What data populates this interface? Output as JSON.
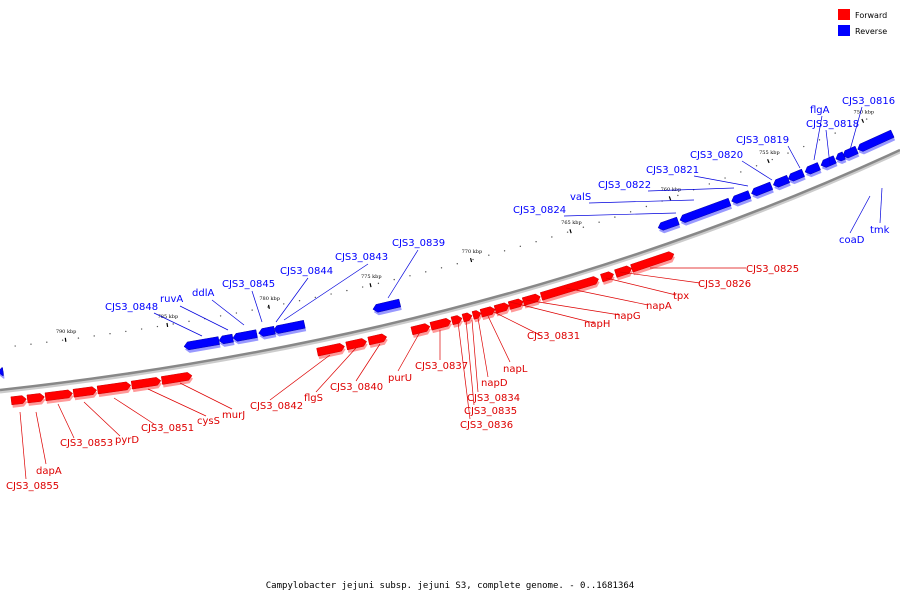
{
  "caption": "Campylobacter jejuni subsp. jejuni S3, complete genome. - 0..1681364",
  "legend": [
    {
      "label": "Forward",
      "color": "#ff0000"
    },
    {
      "label": "Reverse",
      "color": "#0000ff"
    }
  ],
  "colors": {
    "forward": "#ff0000",
    "forward_line": "#dd0000",
    "reverse": "#0000ff",
    "reverse_line": "#0000dd",
    "backbone": "#888888"
  },
  "ticks": [
    "750 kbp",
    "755 kbp",
    "760 kbp",
    "765 kbp",
    "770 kbp",
    "775 kbp",
    "780 kbp",
    "785 kbp",
    "790 kbp"
  ],
  "reverse_genes": [
    "CJS3_0816",
    "flgA",
    "CJS3_0818",
    "CJS3_0819",
    "CJS3_0820",
    "CJS3_0821",
    "CJS3_0822",
    "valS",
    "CJS3_0824",
    "CJS3_0839",
    "CJS3_0843",
    "CJS3_0844",
    "CJS3_0845",
    "ddlA",
    "ruvA",
    "CJS3_0848",
    "coaD",
    "tmk"
  ],
  "forward_genes": [
    "CJS3_0825",
    "CJS3_0826",
    "tpx",
    "napA",
    "napG",
    "napH",
    "CJS3_0831",
    "napL",
    "napD",
    "CJS3_0834",
    "CJS3_0835",
    "CJS3_0836",
    "CJS3_0837",
    "purU",
    "CJS3_0840",
    "flgS",
    "CJS3_0842",
    "murJ",
    "cysS",
    "CJS3_0851",
    "pyrD",
    "CJS3_0853",
    "dapA",
    "CJS3_0855"
  ]
}
